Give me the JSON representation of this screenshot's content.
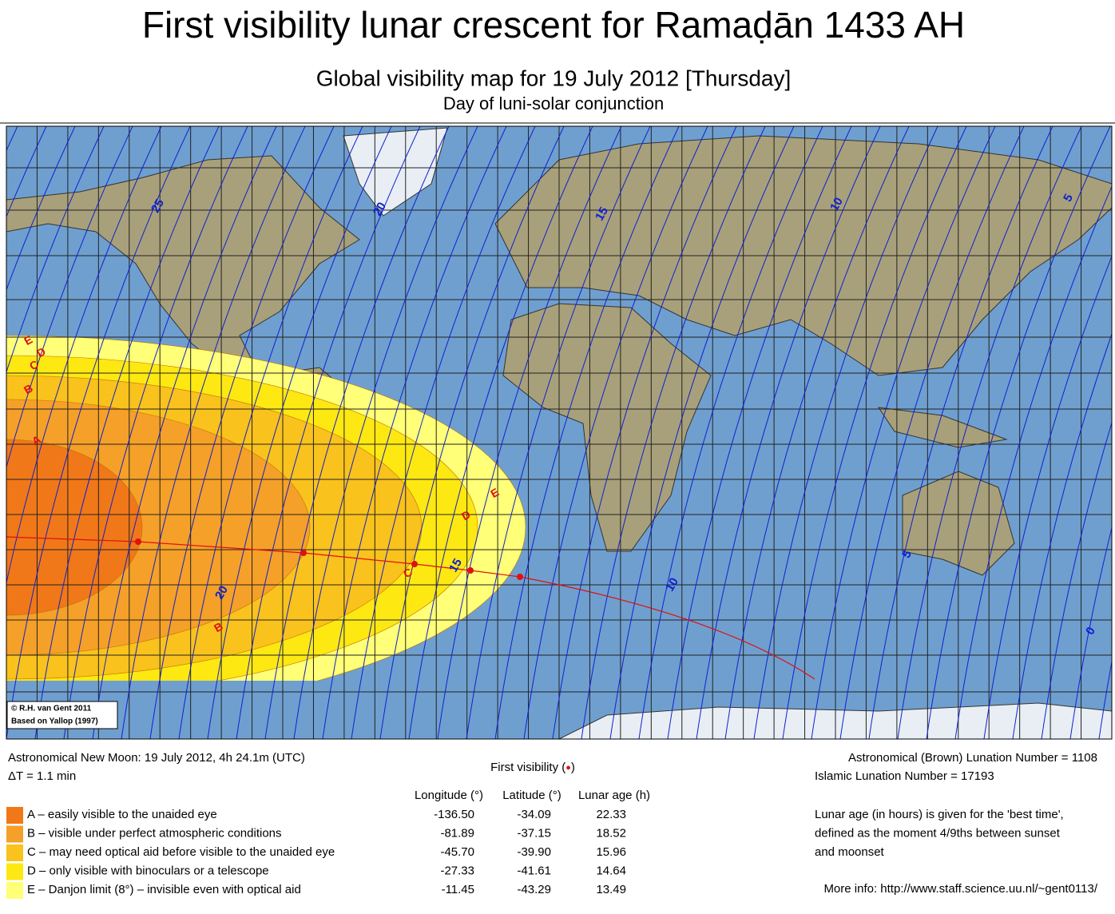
{
  "header": {
    "title": "First visibility lunar crescent for Ramaḍān 1433 AH",
    "subtitle": "Global visibility map for 19 July 2012 [Thursday]",
    "caption": "Day of luni-solar conjunction"
  },
  "map": {
    "contour_labels": [
      "25",
      "20",
      "15",
      "10",
      "5",
      "20",
      "15",
      "10",
      "5",
      "0"
    ],
    "zone_labels": [
      "E",
      "D",
      "C",
      "B",
      "A",
      "B",
      "C",
      "D",
      "E"
    ],
    "credits": [
      "© R.H. van Gent 2011",
      "Based on Yallop (1997)"
    ]
  },
  "legend": {
    "info_left": [
      "Astronomical New Moon: 19 July 2012, 4h 24.1m (UTC)",
      "ΔT = 1.1 min"
    ],
    "first_visibility": [
      "First visibility (",
      "●",
      ")"
    ],
    "columns": [
      "Longitude (°)",
      "Latitude (°)",
      "Lunar age (h)"
    ],
    "rows": [
      {
        "color": "#f07818",
        "label": "A – easily visible to the unaided eye",
        "cells": [
          "-136.50",
          "-34.09",
          "22.33"
        ]
      },
      {
        "color": "#f5a028",
        "label": "B – visible under perfect atmospheric conditions",
        "cells": [
          "-81.89",
          "-37.15",
          "18.52"
        ]
      },
      {
        "color": "#f9c21c",
        "label": "C – may need optical aid before visible to the unaided eye",
        "cells": [
          "-45.70",
          "-39.90",
          "15.96"
        ]
      },
      {
        "color": "#fde812",
        "label": "D – only visible with binoculars or a telescope",
        "cells": [
          "-27.33",
          "-41.61",
          "14.64"
        ]
      },
      {
        "color": "#ffff78",
        "label": "E – Danjon limit (8°) – invisible even with optical aid",
        "cells": [
          "-11.45",
          "-43.29",
          "13.49"
        ]
      }
    ],
    "info_right": [
      "Astronomical (Brown) Lunation Number = 1108",
      "Islamic Lunation Number = 17193"
    ],
    "note": [
      "Lunar age (in hours) is given for the 'best time',",
      "defined as the moment 4/9ths between sunset",
      "and moonset"
    ],
    "more_info": "More info: http://www.staff.science.uu.nl/~gent0113/"
  }
}
